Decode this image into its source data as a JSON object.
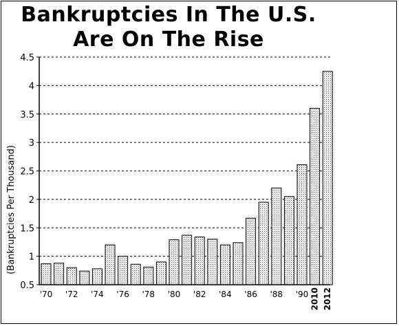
{
  "chart_data": {
    "type": "bar",
    "title_lines": [
      "Bankruptcies In The U.S.",
      "Are On The Rise"
    ],
    "ylabel": "(Bankruptcies Per Thousand)",
    "xlabel": "",
    "ylim": [
      0.5,
      4.5
    ],
    "yticks": [
      0.5,
      1,
      1.5,
      2,
      2.5,
      3,
      3.5,
      4,
      4.5
    ],
    "ytick_labels": [
      "0.5",
      "1",
      "1.5",
      "2",
      "2.5",
      "3",
      "3.5",
      "4",
      "4.5"
    ],
    "grid": "horizontal-dashed",
    "categories": [
      "1970",
      "1971",
      "1972",
      "1973",
      "1974",
      "1975",
      "1976",
      "1977",
      "1978",
      "1979",
      "1980",
      "1981",
      "1982",
      "1983",
      "1984",
      "1985",
      "1986",
      "1987",
      "1988",
      "1989",
      "1990",
      "2010",
      "2012"
    ],
    "tick_labels": [
      "'70",
      "",
      "'72",
      "",
      "'74",
      "",
      "'76",
      "",
      "'78",
      "",
      "'80",
      "",
      "'82",
      "",
      "'84",
      "",
      "'86",
      "",
      "'88",
      "",
      "'90",
      "2010",
      "2012"
    ],
    "values": [
      0.87,
      0.88,
      0.8,
      0.74,
      0.78,
      1.2,
      1.0,
      0.86,
      0.81,
      0.9,
      1.29,
      1.37,
      1.34,
      1.3,
      1.2,
      1.24,
      1.67,
      1.95,
      2.2,
      2.05,
      2.61,
      3.6,
      4.25
    ],
    "bar_fill": "dotted"
  }
}
